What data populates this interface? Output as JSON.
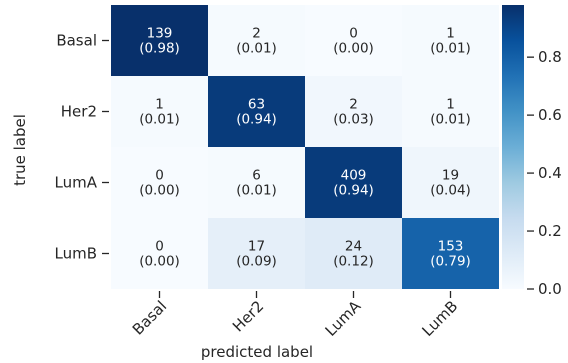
{
  "chart_data": {
    "type": "heatmap",
    "xlabel": "predicted label",
    "ylabel": "true label",
    "x_categories": [
      "Basal",
      "Her2",
      "LumA",
      "LumB"
    ],
    "y_categories": [
      "Basal",
      "Her2",
      "LumA",
      "LumB"
    ],
    "counts": [
      [
        139,
        2,
        0,
        1
      ],
      [
        1,
        63,
        2,
        1
      ],
      [
        0,
        6,
        409,
        19
      ],
      [
        0,
        17,
        24,
        153
      ]
    ],
    "fractions": [
      [
        0.98,
        0.01,
        0.0,
        0.01
      ],
      [
        0.01,
        0.94,
        0.03,
        0.01
      ],
      [
        0.0,
        0.01,
        0.94,
        0.04
      ],
      [
        0.0,
        0.09,
        0.12,
        0.79
      ]
    ],
    "colorbar": {
      "min": 0.0,
      "max": 0.98,
      "ticks": [
        0.0,
        0.2,
        0.4,
        0.6,
        0.8
      ],
      "tick_labels": [
        "0.0",
        "0.2",
        "0.4",
        "0.6",
        "0.8"
      ]
    },
    "colormap": "Blues",
    "colors": {
      "low": "#f7fbff",
      "high": "#08306b",
      "text_dark": "#262626",
      "text_light": "#ffffff"
    }
  }
}
